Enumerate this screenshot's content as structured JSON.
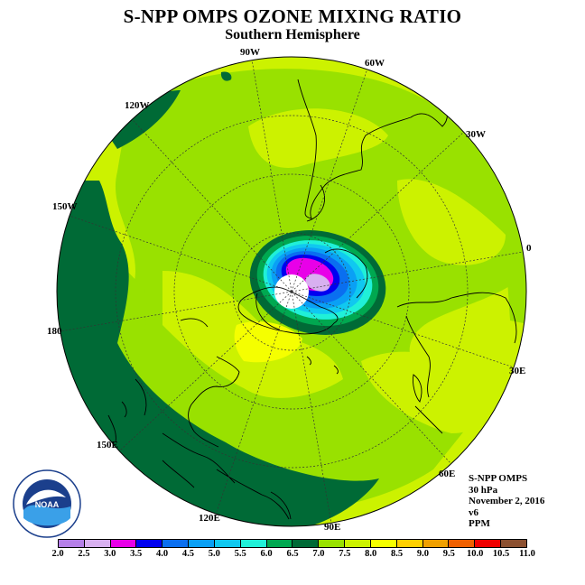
{
  "title": "S-NPP OMPS OZONE MIXING RATIO",
  "subtitle": "Southern Hemisphere",
  "logo_text": "NOAA",
  "logo_ring_text": "NATIONAL OCEANIC AND ATMOSPHERIC ADMINISTRATION · U.S. DEPARTMENT OF COMMERCE",
  "longitude_labels": [
    "90W",
    "60W",
    "30W",
    "0",
    "30E",
    "60E",
    "90E",
    "120E",
    "150E",
    "180",
    "150W",
    "120W"
  ],
  "info": {
    "instrument": "S-NPP OMPS",
    "level": "30 hPa",
    "date": "November 2, 2016",
    "version": "v6",
    "units": "PPM"
  },
  "colorbar": {
    "colors": [
      "#b57fe8",
      "#d8b0f0",
      "#e800e8",
      "#0000f0",
      "#0a6ff0",
      "#0aa0f5",
      "#10c8f0",
      "#20f0d8",
      "#00a850",
      "#006a36",
      "#99e100",
      "#ccf200",
      "#f5ff00",
      "#ffd000",
      "#f0a000",
      "#f06000",
      "#f00000",
      "#8c5030"
    ],
    "tick_labels": [
      "2.0",
      "2.5",
      "3.0",
      "3.5",
      "4.0",
      "4.5",
      "5.0",
      "5.5",
      "6.0",
      "6.5",
      "7.0",
      "7.5",
      "8.0",
      "8.5",
      "9.0",
      "9.5",
      "10.0",
      "10.5",
      "11.0"
    ]
  }
}
